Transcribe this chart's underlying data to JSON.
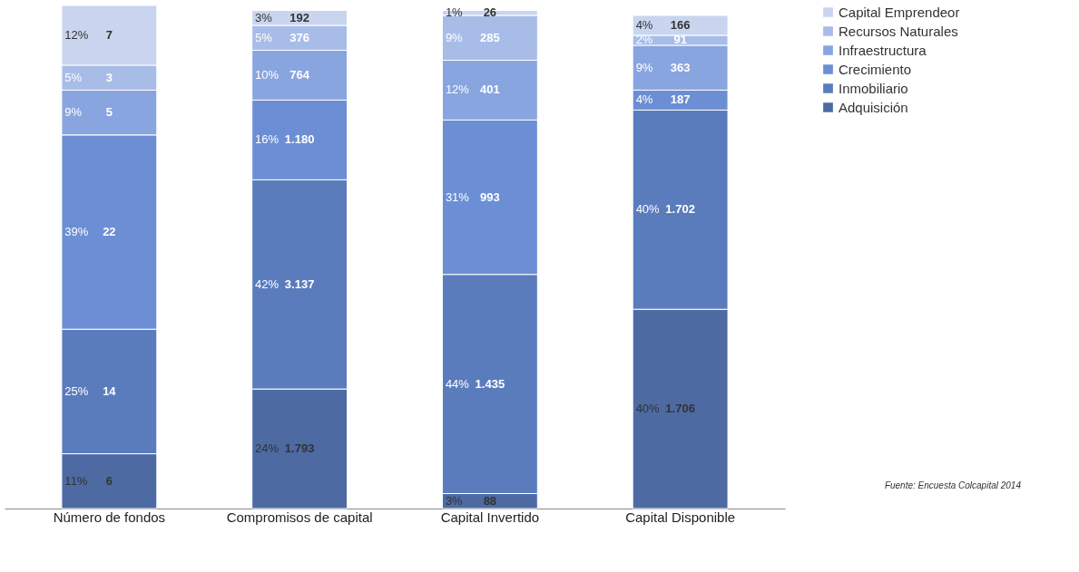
{
  "chart_data": {
    "type": "bar",
    "stacked": true,
    "tick_labels": "x",
    "legend": "right",
    "grid": false,
    "categories": [
      "Número de fondos",
      "Compromisos de capital",
      "Capital Invertido",
      "Capital Disponible"
    ],
    "series": [
      {
        "name": "Adquisición",
        "color": "#4d6aa3",
        "values": [
          11,
          24,
          3,
          40
        ],
        "value_labels": [
          "11%",
          "24%",
          "3%",
          "40%"
        ]
      },
      {
        "name": "Inmobiliario",
        "color": "#5a7cbd",
        "values": [
          25,
          42,
          44,
          40
        ],
        "value_labels": [
          "25%",
          "42%",
          "44%",
          "40%"
        ]
      },
      {
        "name": "Crecimiento",
        "color": "#6b8ed4",
        "values": [
          39,
          16,
          31,
          4
        ],
        "value_labels": [
          "39%",
          "16%",
          "31%",
          "4%"
        ]
      },
      {
        "name": "Infraestructura",
        "color": "#89a5df",
        "values": [
          9,
          10,
          12,
          9
        ],
        "value_labels": [
          "9%",
          "10%",
          "12%",
          "9%"
        ]
      },
      {
        "name": "Recursos Naturales",
        "color": "#a8bce8",
        "values": [
          5,
          5,
          9,
          2
        ],
        "value_labels": [
          "5%",
          "5%",
          "9%",
          "2%"
        ]
      },
      {
        "name": "Capital Emprendeor",
        "color": "#c9d5ef",
        "values": [
          12,
          3,
          1,
          4
        ],
        "value_labels": [
          "12%",
          "3%",
          "1%",
          "4%"
        ]
      }
    ],
    "annotations": [
      "6",
      "1.793",
      "88",
      "1.706",
      "14",
      "3.137",
      "1.435",
      "1.702",
      "22",
      "1.180",
      "993",
      "187",
      "5",
      "764",
      "401",
      "363",
      "3",
      "376",
      "285",
      "91",
      "7",
      "192",
      "26",
      "166",
      "Fuente: Encuesta Colcapital 2014"
    ]
  }
}
